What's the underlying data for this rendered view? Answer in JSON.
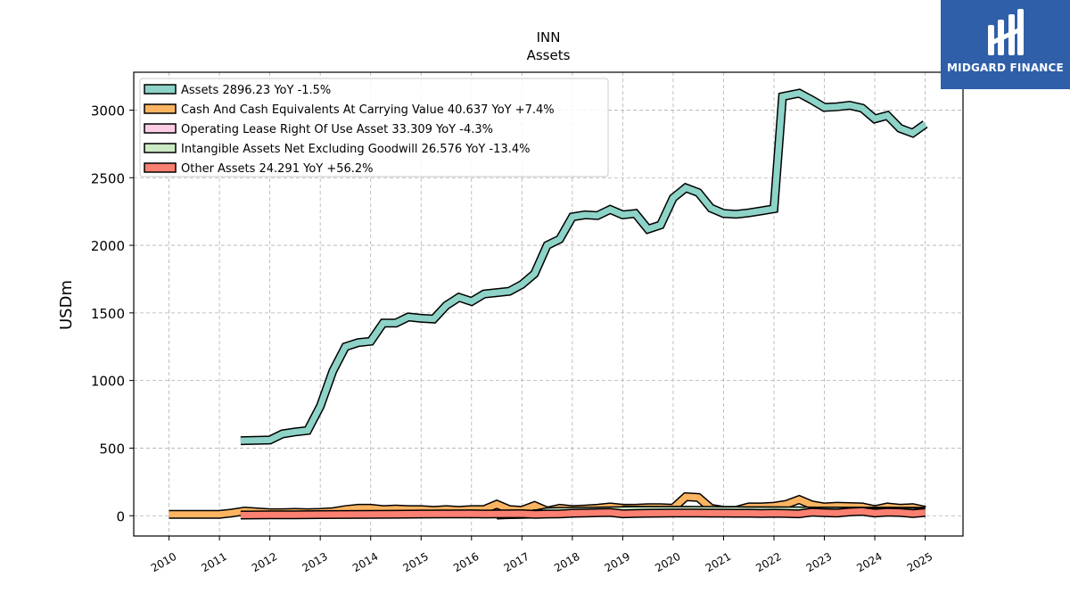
{
  "brand": {
    "name": "MIDGARD FINANCE",
    "logo_color": "#2f5fa8"
  },
  "chart_data": {
    "type": "area",
    "title": "INN",
    "subtitle": "Assets",
    "ylabel": "USDm",
    "xlabel": "",
    "ylim": [
      -150,
      3280
    ],
    "xlim": [
      2009.3,
      2025.75
    ],
    "yticks": [
      0,
      500,
      1000,
      1500,
      2000,
      2500,
      3000
    ],
    "xticks": [
      2010,
      2011,
      2012,
      2013,
      2014,
      2015,
      2016,
      2017,
      2018,
      2019,
      2020,
      2021,
      2022,
      2023,
      2024,
      2025
    ],
    "grid": true,
    "legend_position": "top-left",
    "series": [
      {
        "name": "Assets",
        "legend": "Assets  2896.23 YoY -1.5%",
        "color": "#8dd3c7",
        "x": [
          2011.42,
          2012.0,
          2012.25,
          2012.5,
          2012.75,
          2013.0,
          2013.25,
          2013.5,
          2013.75,
          2014.0,
          2014.25,
          2014.5,
          2014.75,
          2015.0,
          2015.25,
          2015.5,
          2015.75,
          2016.0,
          2016.25,
          2016.5,
          2016.75,
          2017.0,
          2017.25,
          2017.5,
          2017.75,
          2018.0,
          2018.25,
          2018.5,
          2018.75,
          2019.0,
          2019.25,
          2019.5,
          2019.75,
          2020.0,
          2020.25,
          2020.5,
          2020.75,
          2021.0,
          2021.25,
          2021.5,
          2021.75,
          2022.0,
          2022.17,
          2022.5,
          2022.75,
          2023.0,
          2023.25,
          2023.5,
          2023.75,
          2024.0,
          2024.25,
          2024.5,
          2024.75,
          2025.0
        ],
        "values": [
          555,
          560,
          605,
          620,
          630,
          810,
          1070,
          1250,
          1280,
          1290,
          1425,
          1425,
          1470,
          1460,
          1455,
          1555,
          1615,
          1585,
          1640,
          1650,
          1660,
          1710,
          1790,
          2000,
          2045,
          2210,
          2225,
          2220,
          2265,
          2225,
          2235,
          2120,
          2150,
          2350,
          2425,
          2390,
          2275,
          2235,
          2230,
          2240,
          2255,
          2270,
          3100,
          3125,
          3075,
          3020,
          3025,
          3035,
          3015,
          2935,
          2960,
          2865,
          2830,
          2896
        ]
      },
      {
        "name": "Cash And Cash Equivalents At Carrying Value",
        "legend": "Cash And Cash Equivalents At Carrying Value  40.637 YoY +7.4%",
        "color": "#fdb462",
        "x": [
          2010.0,
          2010.5,
          2011.0,
          2011.25,
          2011.5,
          2011.75,
          2012.0,
          2012.25,
          2012.5,
          2012.75,
          2013.0,
          2013.25,
          2013.5,
          2013.75,
          2014.0,
          2014.25,
          2014.5,
          2014.75,
          2015.0,
          2015.25,
          2015.5,
          2015.75,
          2016.0,
          2016.25,
          2016.5,
          2016.75,
          2017.0,
          2017.25,
          2017.5,
          2017.75,
          2018.0,
          2018.25,
          2018.5,
          2018.75,
          2019.0,
          2019.25,
          2019.5,
          2019.75,
          2020.0,
          2020.25,
          2020.5,
          2020.75,
          2021.0,
          2021.25,
          2021.5,
          2021.75,
          2022.0,
          2022.25,
          2022.5,
          2022.75,
          2023.0,
          2023.25,
          2023.5,
          2023.75,
          2024.0,
          2024.25,
          2024.5,
          2024.75,
          2025.0
        ],
        "values": [
          10,
          10,
          10,
          20,
          35,
          28,
          22,
          22,
          25,
          22,
          25,
          30,
          45,
          55,
          55,
          45,
          50,
          45,
          45,
          40,
          45,
          40,
          45,
          45,
          85,
          45,
          40,
          75,
          35,
          55,
          45,
          50,
          55,
          65,
          55,
          55,
          60,
          60,
          55,
          140,
          135,
          55,
          40,
          40,
          65,
          65,
          70,
          85,
          120,
          80,
          65,
          70,
          68,
          65,
          45,
          65,
          55,
          60,
          40.637
        ]
      },
      {
        "name": "Operating Lease Right Of Use Asset",
        "legend": "Operating Lease Right Of Use Asset  33.309 YoY -4.3%",
        "color": "#fccde5",
        "x": [
          2019.0,
          2019.25,
          2019.5,
          2019.75,
          2020.0,
          2020.25,
          2020.5,
          2020.75,
          2021.0,
          2021.25,
          2021.5,
          2021.75,
          2022.0,
          2022.25,
          2022.5,
          2022.75,
          2023.0,
          2023.25,
          2023.5,
          2023.75,
          2024.0,
          2024.25,
          2024.5,
          2024.75,
          2025.0
        ],
        "values": [
          42,
          41,
          40,
          40,
          39,
          39,
          38,
          38,
          37,
          37,
          36,
          36,
          36,
          35,
          35,
          35,
          35,
          34,
          34,
          34,
          34,
          34,
          33,
          33,
          33.309
        ]
      },
      {
        "name": "Intangible Assets Net Excluding Goodwill",
        "legend": "Intangible Assets Net Excluding Goodwill  26.576 YoY -13.4%",
        "color": "#ccebc5",
        "x": [
          2016.5,
          2016.75,
          2017.0,
          2017.25,
          2017.5,
          2017.75,
          2018.0,
          2018.25,
          2018.5,
          2018.75,
          2019.0,
          2019.25,
          2019.5,
          2019.75,
          2020.0,
          2020.25,
          2020.5,
          2020.75,
          2021.0,
          2021.25,
          2021.5,
          2021.75,
          2022.0,
          2022.25,
          2022.5,
          2022.75,
          2023.0,
          2023.25,
          2023.5,
          2023.75,
          2024.0,
          2024.25,
          2024.5,
          2024.75,
          2025.0
        ],
        "values": [
          5,
          8,
          10,
          12,
          30,
          32,
          33,
          34,
          35,
          36,
          38,
          40,
          40,
          40,
          40,
          40,
          39,
          39,
          38,
          38,
          37,
          37,
          36,
          36,
          36,
          35,
          34,
          34,
          33,
          32,
          31,
          31,
          30,
          29,
          26.576
        ]
      },
      {
        "name": "Other Assets",
        "legend": "Other Assets  24.291 YoY +56.2%",
        "color": "#fb8072",
        "x": [
          2011.42,
          2012.0,
          2012.5,
          2013.0,
          2013.5,
          2014.0,
          2014.5,
          2015.0,
          2015.5,
          2016.0,
          2016.25,
          2016.5,
          2016.75,
          2017.0,
          2017.25,
          2017.5,
          2017.75,
          2018.0,
          2018.25,
          2018.5,
          2018.75,
          2019.0,
          2019.25,
          2019.5,
          2019.75,
          2020.0,
          2020.25,
          2020.5,
          2020.75,
          2021.0,
          2021.25,
          2021.5,
          2021.75,
          2022.0,
          2022.25,
          2022.5,
          2022.75,
          2023.0,
          2023.25,
          2023.5,
          2023.75,
          2024.0,
          2024.25,
          2024.5,
          2024.75,
          2025.0
        ],
        "values": [
          5,
          6,
          7,
          8,
          9,
          10,
          11,
          12,
          13,
          14,
          12,
          13,
          14,
          15,
          10,
          12,
          13,
          18,
          20,
          22,
          24,
          14,
          16,
          18,
          19,
          20,
          20,
          20,
          19,
          19,
          18,
          18,
          17,
          18,
          16,
          14,
          26,
          22,
          20,
          28,
          32,
          20,
          26,
          24,
          16,
          24.291
        ]
      }
    ]
  }
}
